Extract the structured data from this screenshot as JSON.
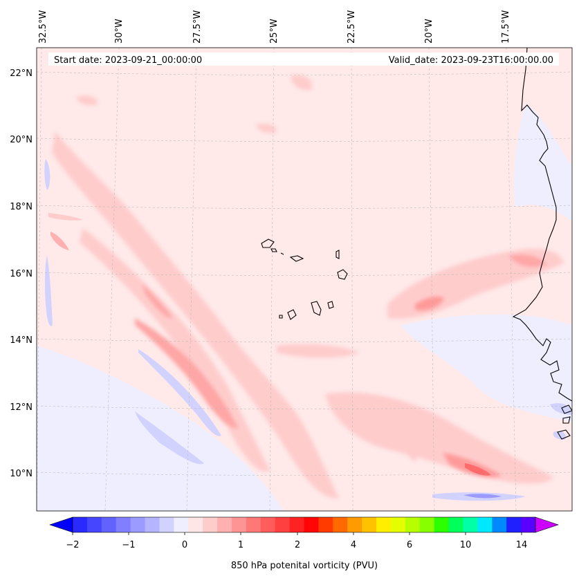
{
  "map": {
    "start_label": "Start date: 2023-09-21_00:00:00",
    "valid_label": "Valid_date: 2023-09-23T16:00:00.00",
    "lon_labels": [
      "32.5°W",
      "30°W",
      "27.5°W",
      "25°W",
      "22.5°W",
      "20°W",
      "17.5°W"
    ],
    "lat_labels": [
      "22°N",
      "20°N",
      "18°N",
      "16°N",
      "14°N",
      "12°N",
      "10°N"
    ],
    "extent": {
      "lon_min": -33.0,
      "lon_max": -15.8,
      "lat_min": 8.9,
      "lat_max": 22.8
    }
  },
  "colorbar": {
    "label": "850 hPa potenital vorticity (PVU)",
    "tick_labels": [
      "−2",
      "−1",
      "0",
      "1",
      "2",
      "4",
      "6",
      "10",
      "14"
    ],
    "colors": [
      "#2a2aff",
      "#4646ff",
      "#6262ff",
      "#7f7fff",
      "#9a9aff",
      "#b5b5ff",
      "#d2d2ff",
      "#eeeeff",
      "#ffe6e6",
      "#ffcccc",
      "#ffb0b0",
      "#ff9494",
      "#ff7878",
      "#ff5c5c",
      "#ff4040",
      "#ff2222",
      "#ff0505",
      "#ff3b00",
      "#ff6a00",
      "#ff9a00",
      "#ffc200",
      "#ffee00",
      "#e4ff00",
      "#b7ff00",
      "#88ff00",
      "#2bff00",
      "#00ff5a",
      "#00ffa6",
      "#00e8ff",
      "#0088ff",
      "#2020ff",
      "#5a00ff"
    ],
    "under_color": "#0000ff",
    "over_color": "#cc00ff"
  }
}
